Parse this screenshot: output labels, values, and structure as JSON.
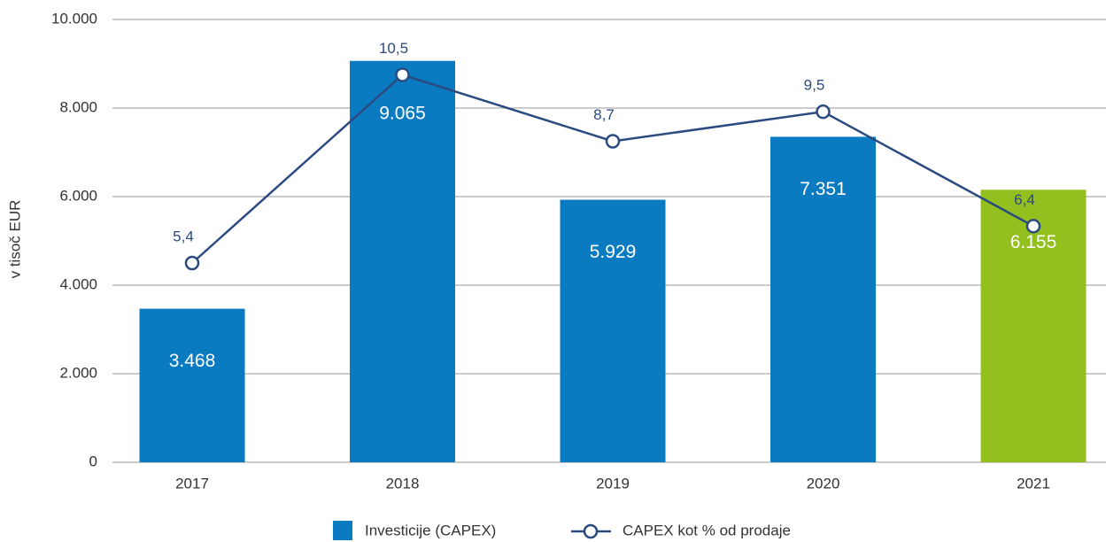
{
  "chart_data": {
    "type": "bar_line",
    "y_label": "v tisoč EUR",
    "categories": [
      "2017",
      "2018",
      "2019",
      "2020",
      "2021"
    ],
    "series": [
      {
        "name": "Investicije (CAPEX)",
        "type": "bar",
        "color": "#0a7bc1",
        "colors": [
          "#0a7bc1",
          "#0a7bc1",
          "#0a7bc1",
          "#0a7bc1",
          "#93c01f"
        ],
        "values": [
          3468,
          9065,
          5929,
          7351,
          6155
        ],
        "value_labels": [
          "3.468",
          "9.065",
          "5.929",
          "7.351",
          "6.155"
        ]
      },
      {
        "name": "CAPEX kot % od prodaje",
        "type": "line",
        "axis": "y2",
        "color": "#2a4a80",
        "values": [
          5.4,
          10.5,
          8.7,
          9.5,
          6.4
        ],
        "value_labels": [
          "5,4",
          "10,5",
          "8,7",
          "9,5",
          "6,4"
        ]
      }
    ],
    "ylim": [
      0,
      10000
    ],
    "yticks": [
      0,
      {
        "value": 2000,
        "label": "2.000"
      },
      {
        "value": 4000,
        "label": "4.000"
      },
      {
        "value": 6000,
        "label": "6.000"
      },
      {
        "value": 8000,
        "label": "8.000"
      },
      {
        "value": 10000,
        "label": "10.000"
      }
    ],
    "y2lim": [
      0,
      12
    ],
    "grid": true,
    "legend": "bottom"
  }
}
